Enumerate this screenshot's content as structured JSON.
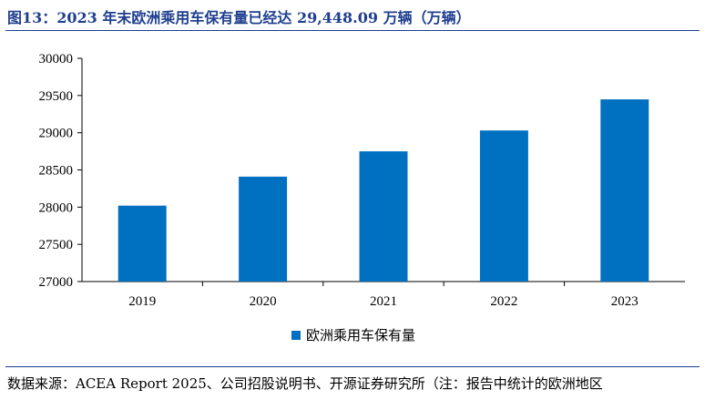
{
  "header": {
    "title": "图13：2023 年末欧洲乘用车保有量已经达 29,448.09 万辆（万辆）"
  },
  "chart_data": {
    "type": "bar",
    "categories": [
      "2019",
      "2020",
      "2021",
      "2022",
      "2023"
    ],
    "series": [
      {
        "name": "欧洲乘用车保有量",
        "values": [
          28020,
          28410,
          28750,
          29030,
          29448.09
        ],
        "color": "#0070c0"
      }
    ],
    "title": "",
    "xlabel": "",
    "ylabel": "",
    "ylim": [
      27000,
      30000
    ],
    "yticks": [
      27000,
      27500,
      28000,
      28500,
      29000,
      29500,
      30000
    ],
    "grid": false,
    "legend": "bottom-center"
  },
  "footer": {
    "source": "数据来源：ACEA Report 2025、公司招股说明书、开源证券研究所（注：报告中统计的欧洲地区"
  }
}
